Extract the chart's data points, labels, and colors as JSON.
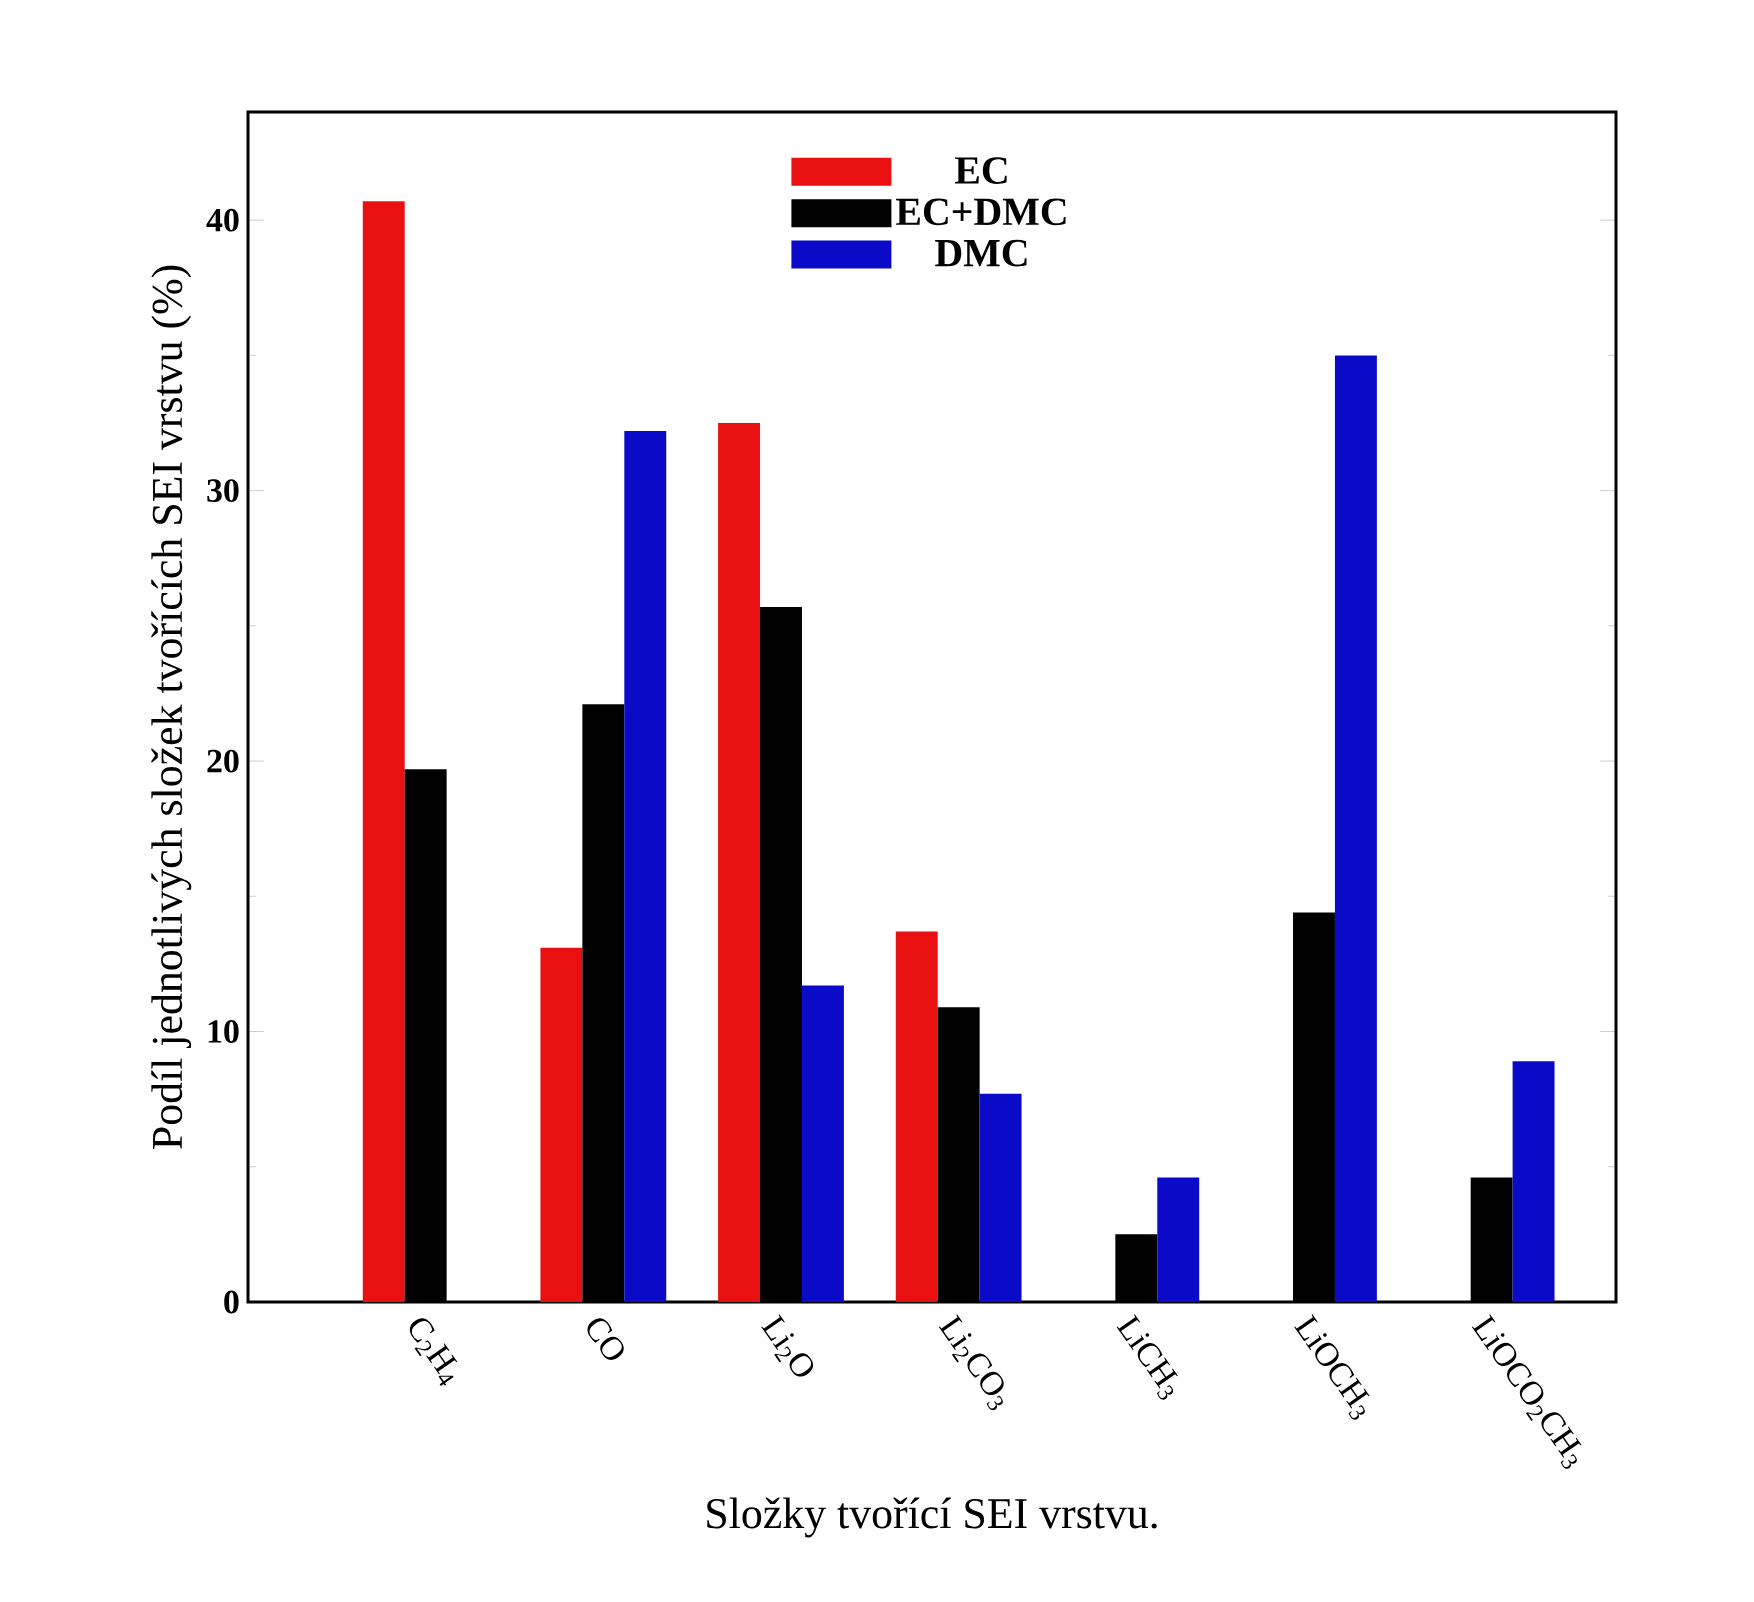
{
  "chart_data": {
    "type": "bar",
    "ylabel": "Podíl jednotlivých složek tvořících SEI vrstvu (%)",
    "xlabel": "Složky tvořící SEI vrstvu.",
    "categories": [
      "C$_{2}$H$_{4}$",
      "CO",
      "Li$_{2}$O",
      "Li$_{2}$CO$_{3}$",
      "LiCH$_{3}$",
      "LiOCH$_{3}$",
      "LiOCO$_{2}$CH$_{3}$"
    ],
    "series": [
      {
        "name": "EC",
        "color": "#e81010",
        "values": [
          40.7,
          13.1,
          32.5,
          13.7,
          null,
          null,
          null
        ]
      },
      {
        "name": "EC+DMC",
        "color": "#000000",
        "values": [
          19.7,
          22.1,
          25.7,
          10.9,
          2.5,
          14.4,
          4.6
        ]
      },
      {
        "name": "DMC",
        "color": "#0a0ac8",
        "values": [
          null,
          32.2,
          11.7,
          7.7,
          4.6,
          35.0,
          8.9
        ]
      }
    ],
    "ylim": [
      0,
      44
    ],
    "yticks": [
      0,
      10,
      20,
      30,
      40
    ],
    "legend": "top",
    "grid": false
  }
}
